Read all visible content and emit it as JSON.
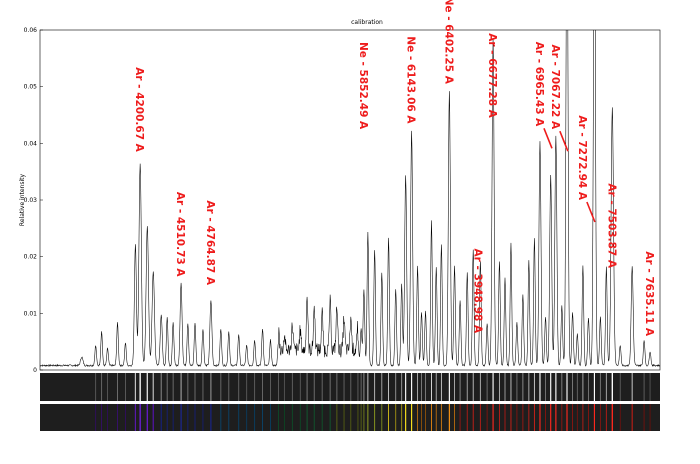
{
  "title": "calibration",
  "chart_data": {
    "type": "line",
    "title": "calibration",
    "xlabel": "",
    "ylabel": "Relative intensity",
    "ylim": [
      0,
      0.06
    ],
    "yticks": [
      "0",
      "0.01",
      "0.02",
      "0.03",
      "0.04",
      "0.05",
      "0.06"
    ],
    "grid": false,
    "legend": "none",
    "line_color": "#000000",
    "label_color": "#ee1c1c",
    "x_index_range": [
      0,
      1000
    ],
    "background": {
      "baseline": 0.0008,
      "noise": 0.0003
    },
    "peaks": [
      [
        105,
        0.0015,
        3
      ],
      [
        140,
        0.0035,
        2
      ],
      [
        155,
        0.006,
        2
      ],
      [
        170,
        0.003,
        2
      ],
      [
        195,
        0.0075,
        2
      ],
      [
        215,
        0.004,
        2
      ],
      [
        240,
        0.0215,
        2.5
      ],
      [
        252,
        0.0355,
        3
      ],
      [
        270,
        0.0245,
        3
      ],
      [
        285,
        0.0165,
        3
      ],
      [
        305,
        0.009,
        2.5
      ],
      [
        320,
        0.0085,
        2
      ],
      [
        335,
        0.0075,
        2
      ],
      [
        355,
        0.0145,
        2.5
      ],
      [
        372,
        0.0075,
        2
      ],
      [
        390,
        0.0075,
        2
      ],
      [
        410,
        0.0065,
        2
      ],
      [
        430,
        0.0115,
        2.5
      ],
      [
        455,
        0.0065,
        2
      ],
      [
        475,
        0.006,
        2
      ],
      [
        500,
        0.0055,
        2
      ],
      [
        520,
        0.0035,
        2
      ],
      [
        540,
        0.0045,
        2
      ],
      [
        560,
        0.0065,
        2
      ],
      [
        580,
        0.0045,
        2
      ],
      [
        600,
        0.004,
        2
      ],
      [
        615,
        0.0025,
        2
      ],
      [
        635,
        0.0045,
        2
      ],
      [
        655,
        0.0035,
        2
      ],
      [
        672,
        0.0095,
        2
      ],
      [
        690,
        0.0075,
        2
      ],
      [
        710,
        0.0065,
        2
      ],
      [
        730,
        0.0085,
        2
      ],
      [
        747,
        0.0075,
        2
      ],
      [
        765,
        0.0055,
        2
      ],
      [
        782,
        0.0055,
        2
      ],
      [
        800,
        0.0045,
        2
      ],
      [
        808,
        0.0065,
        2
      ],
      [
        815,
        0.0135,
        2
      ],
      [
        825,
        0.0235,
        2
      ],
      [
        842,
        0.0205,
        2
      ],
      [
        860,
        0.0165,
        2
      ],
      [
        877,
        0.0225,
        2
      ],
      [
        895,
        0.0135,
        2
      ],
      [
        910,
        0.0145,
        2
      ],
      [
        920,
        0.0335,
        2.5
      ],
      [
        935,
        0.0415,
        2.5
      ],
      [
        950,
        0.0175,
        2
      ],
      [
        960,
        0.0095,
        2
      ],
      [
        970,
        0.0095,
        2
      ],
      [
        985,
        0.0255,
        2
      ],
      [
        997,
        0.0175,
        2
      ],
      [
        1010,
        0.0215,
        2
      ],
      [
        1030,
        0.0485,
        2.5
      ],
      [
        1043,
        0.0175,
        2
      ],
      [
        1057,
        0.0115,
        2
      ],
      [
        1075,
        0.0165,
        2
      ],
      [
        1090,
        0.0205,
        2
      ],
      [
        1108,
        0.0185,
        2
      ],
      [
        1125,
        0.0075,
        2
      ],
      [
        1140,
        0.0575,
        2.5
      ],
      [
        1156,
        0.0185,
        2
      ],
      [
        1170,
        0.0155,
        2
      ],
      [
        1185,
        0.0215,
        2
      ],
      [
        1200,
        0.0075,
        2
      ],
      [
        1215,
        0.0125,
        2
      ],
      [
        1230,
        0.0185,
        2
      ],
      [
        1244,
        0.0225,
        2
      ],
      [
        1258,
        0.0395,
        2.5
      ],
      [
        1272,
        0.0085,
        2
      ],
      [
        1285,
        0.0335,
        2.5
      ],
      [
        1298,
        0.0405,
        2.5
      ],
      [
        1313,
        0.0105,
        2
      ],
      [
        1326,
        0.085,
        2.5
      ],
      [
        1340,
        0.0095,
        2
      ],
      [
        1352,
        0.0055,
        2
      ],
      [
        1366,
        0.0175,
        2
      ],
      [
        1380,
        0.0085,
        2
      ],
      [
        1395,
        0.085,
        2.5
      ],
      [
        1410,
        0.0085,
        2
      ],
      [
        1425,
        0.0175,
        2
      ],
      [
        1440,
        0.0455,
        3
      ],
      [
        1460,
        0.0035,
        2
      ],
      [
        1490,
        0.0175,
        2.5
      ],
      [
        1520,
        0.0045,
        2
      ],
      [
        1535,
        0.0025,
        2
      ]
    ],
    "annotations": [
      {
        "text": "Ar - 3948.98 A",
        "peak_x": 1103,
        "y": 0.0065,
        "arrow": false
      },
      {
        "text": "Ar - 4200.67 A",
        "peak_x": 252,
        "y": 0.0385,
        "arrow": false
      },
      {
        "text": "Ar - 4510.73 A",
        "peak_x": 355,
        "y": 0.0165,
        "arrow": false
      },
      {
        "text": "Ar - 4764.87 A",
        "peak_x": 430,
        "y": 0.015,
        "arrow": false
      },
      {
        "text": "Ne - 5852.49 A",
        "peak_x": 815,
        "y": 0.0425,
        "arrow": false
      },
      {
        "text": "Ne - 6143.06 A",
        "peak_x": 935,
        "y": 0.0435,
        "arrow": false
      },
      {
        "text": "Ne - 6402.25 A",
        "peak_x": 1030,
        "y": 0.0505,
        "arrow": false
      },
      {
        "text": "Ar - 6677.28 A",
        "peak_x": 1140,
        "y": 0.0445,
        "arrow": false
      },
      {
        "text": "Ar - 6965.43 A",
        "peak_x": 1258,
        "y": 0.043,
        "arrow": true
      },
      {
        "text": "Ar - 7067.22 A",
        "peak_x": 1298,
        "y": 0.0425,
        "arrow": true
      },
      {
        "text": "Ar - 7272.94 A",
        "peak_x": 1366,
        "y": 0.03,
        "arrow": true
      },
      {
        "text": "Ar - 7503.87 A",
        "peak_x": 1440,
        "y": 0.018,
        "arrow": false
      },
      {
        "text": "Ar - 7635.11 A",
        "peak_x": 1535,
        "y": 0.006,
        "arrow": false
      }
    ],
    "spectrum_strips": [
      {
        "name": "grayscale-spectrum",
        "style": "gray"
      },
      {
        "name": "color-spectrum",
        "style": "color"
      }
    ]
  }
}
